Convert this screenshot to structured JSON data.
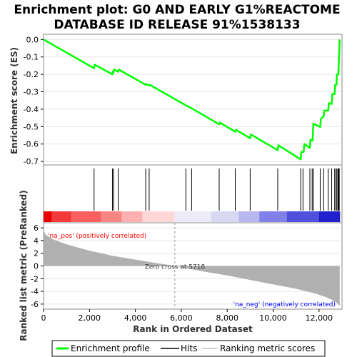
{
  "chart_data": {
    "type": "line",
    "title_line1": "Enrichment plot: G0 AND EARLY G1%REACTOME",
    "title_line2": "DATABASE ID RELEASE 91%1538133",
    "top_panel": {
      "ylabel": "Enrichment score (ES)",
      "ylim": [
        -0.72,
        0.03
      ],
      "yticks": [
        "0.0",
        "-0.1",
        "-0.2",
        "-0.3",
        "-0.4",
        "-0.5",
        "-0.6",
        "-0.7"
      ],
      "ytick_values": [
        0.0,
        -0.1,
        -0.2,
        -0.3,
        -0.4,
        -0.5,
        -0.6,
        -0.7
      ],
      "line_color": "#00ff00",
      "series": [
        {
          "x": [
            0,
            2200,
            2230,
            3000,
            3030,
            3050,
            3080,
            3250,
            3280,
            4450,
            4480,
            4600,
            4630,
            6200,
            6450,
            7650,
            7680,
            8350,
            8380,
            9000,
            9030,
            10200,
            10230,
            11200,
            11230,
            11330,
            11360,
            11600,
            11630,
            11720,
            11750,
            12050,
            12080,
            12200,
            12230,
            12400,
            12430,
            12550,
            12580,
            12680,
            12700,
            12760,
            12780,
            12840,
            12860,
            12880,
            12900
          ],
          "y": [
            0.0,
            -0.165,
            -0.145,
            -0.2,
            -0.183,
            -0.19,
            -0.172,
            -0.185,
            -0.173,
            -0.26,
            -0.255,
            -0.265,
            -0.26,
            -0.378,
            -0.395,
            -0.487,
            -0.477,
            -0.53,
            -0.518,
            -0.567,
            -0.545,
            -0.635,
            -0.607,
            -0.688,
            -0.645,
            -0.645,
            -0.6,
            -0.622,
            -0.575,
            -0.58,
            -0.483,
            -0.502,
            -0.455,
            -0.442,
            -0.408,
            -0.408,
            -0.365,
            -0.37,
            -0.313,
            -0.313,
            -0.26,
            -0.26,
            -0.2,
            -0.2,
            -0.13,
            -0.07,
            0.0
          ]
        }
      ]
    },
    "hits_panel": {
      "hits_x": [
        2200,
        3000,
        3050,
        3250,
        4450,
        4600,
        6200,
        6450,
        7650,
        8350,
        9000,
        10200,
        11200,
        11300,
        11600,
        11700,
        11750,
        12050,
        12200,
        12400,
        12550,
        12680,
        12740,
        12780,
        12830,
        12860,
        12880
      ]
    },
    "bottom_panel": {
      "ylabel": "Ranked list metric (PreRanked)",
      "ylim": [
        -6.8,
        6.8
      ],
      "yticks": [
        "6",
        "4",
        "2",
        "0",
        "-2",
        "-4",
        "-6"
      ],
      "ytick_values": [
        6,
        4,
        2,
        0,
        -2,
        -4,
        -6
      ],
      "metric_x": [
        0,
        100,
        400,
        1000,
        2000,
        3000,
        4000,
        5000,
        5718,
        7000,
        8000,
        9000,
        10000,
        11000,
        11800,
        12300,
        12600,
        12800,
        12900
      ],
      "metric_y": [
        5.6,
        4.9,
        4.2,
        3.4,
        2.4,
        1.6,
        1.0,
        0.4,
        0.0,
        -0.9,
        -1.5,
        -2.2,
        -2.9,
        -3.6,
        -4.3,
        -4.9,
        -5.4,
        -5.9,
        -6.3
      ],
      "fill_color": "#b0b0b0",
      "zero_cross_label": "Zero cross at 5718",
      "zero_cross_x": 5718,
      "pos_label": "'na_pos' (positively correlated)",
      "neg_label": "'na_neg' (negatively correlated)",
      "pos_label_color": "#ff0000",
      "neg_label_color": "#0000ff"
    },
    "xlabel": "Rank in Ordered Dataset",
    "xlim": [
      0,
      13000
    ],
    "xticks": [
      "0",
      "2,000",
      "4,000",
      "6,000",
      "8,000",
      "10,000",
      "12,000"
    ],
    "xtick_values": [
      0,
      2000,
      4000,
      6000,
      8000,
      10000,
      12000
    ],
    "n_genes": 12900,
    "colorbar_colors": [
      "#e80000",
      "#f23a3a",
      "#f86060",
      "#fb8585",
      "#ffb0b0",
      "#ffd7d7",
      "#ececf8",
      "#d8d8f3",
      "#b8b8ee",
      "#8080e8",
      "#5050dd",
      "#2020cc",
      "#0000b0"
    ],
    "colorbar_stops": [
      0,
      350,
      1200,
      2500,
      3400,
      4300,
      5700,
      7300,
      8500,
      9400,
      10600,
      12000,
      12900
    ],
    "legend": [
      {
        "label": "Enrichment profile",
        "color": "#00ff00"
      },
      {
        "label": "Hits",
        "color": "#000000"
      },
      {
        "label": "Ranking metric scores",
        "color": "#c0c0c0"
      }
    ]
  }
}
